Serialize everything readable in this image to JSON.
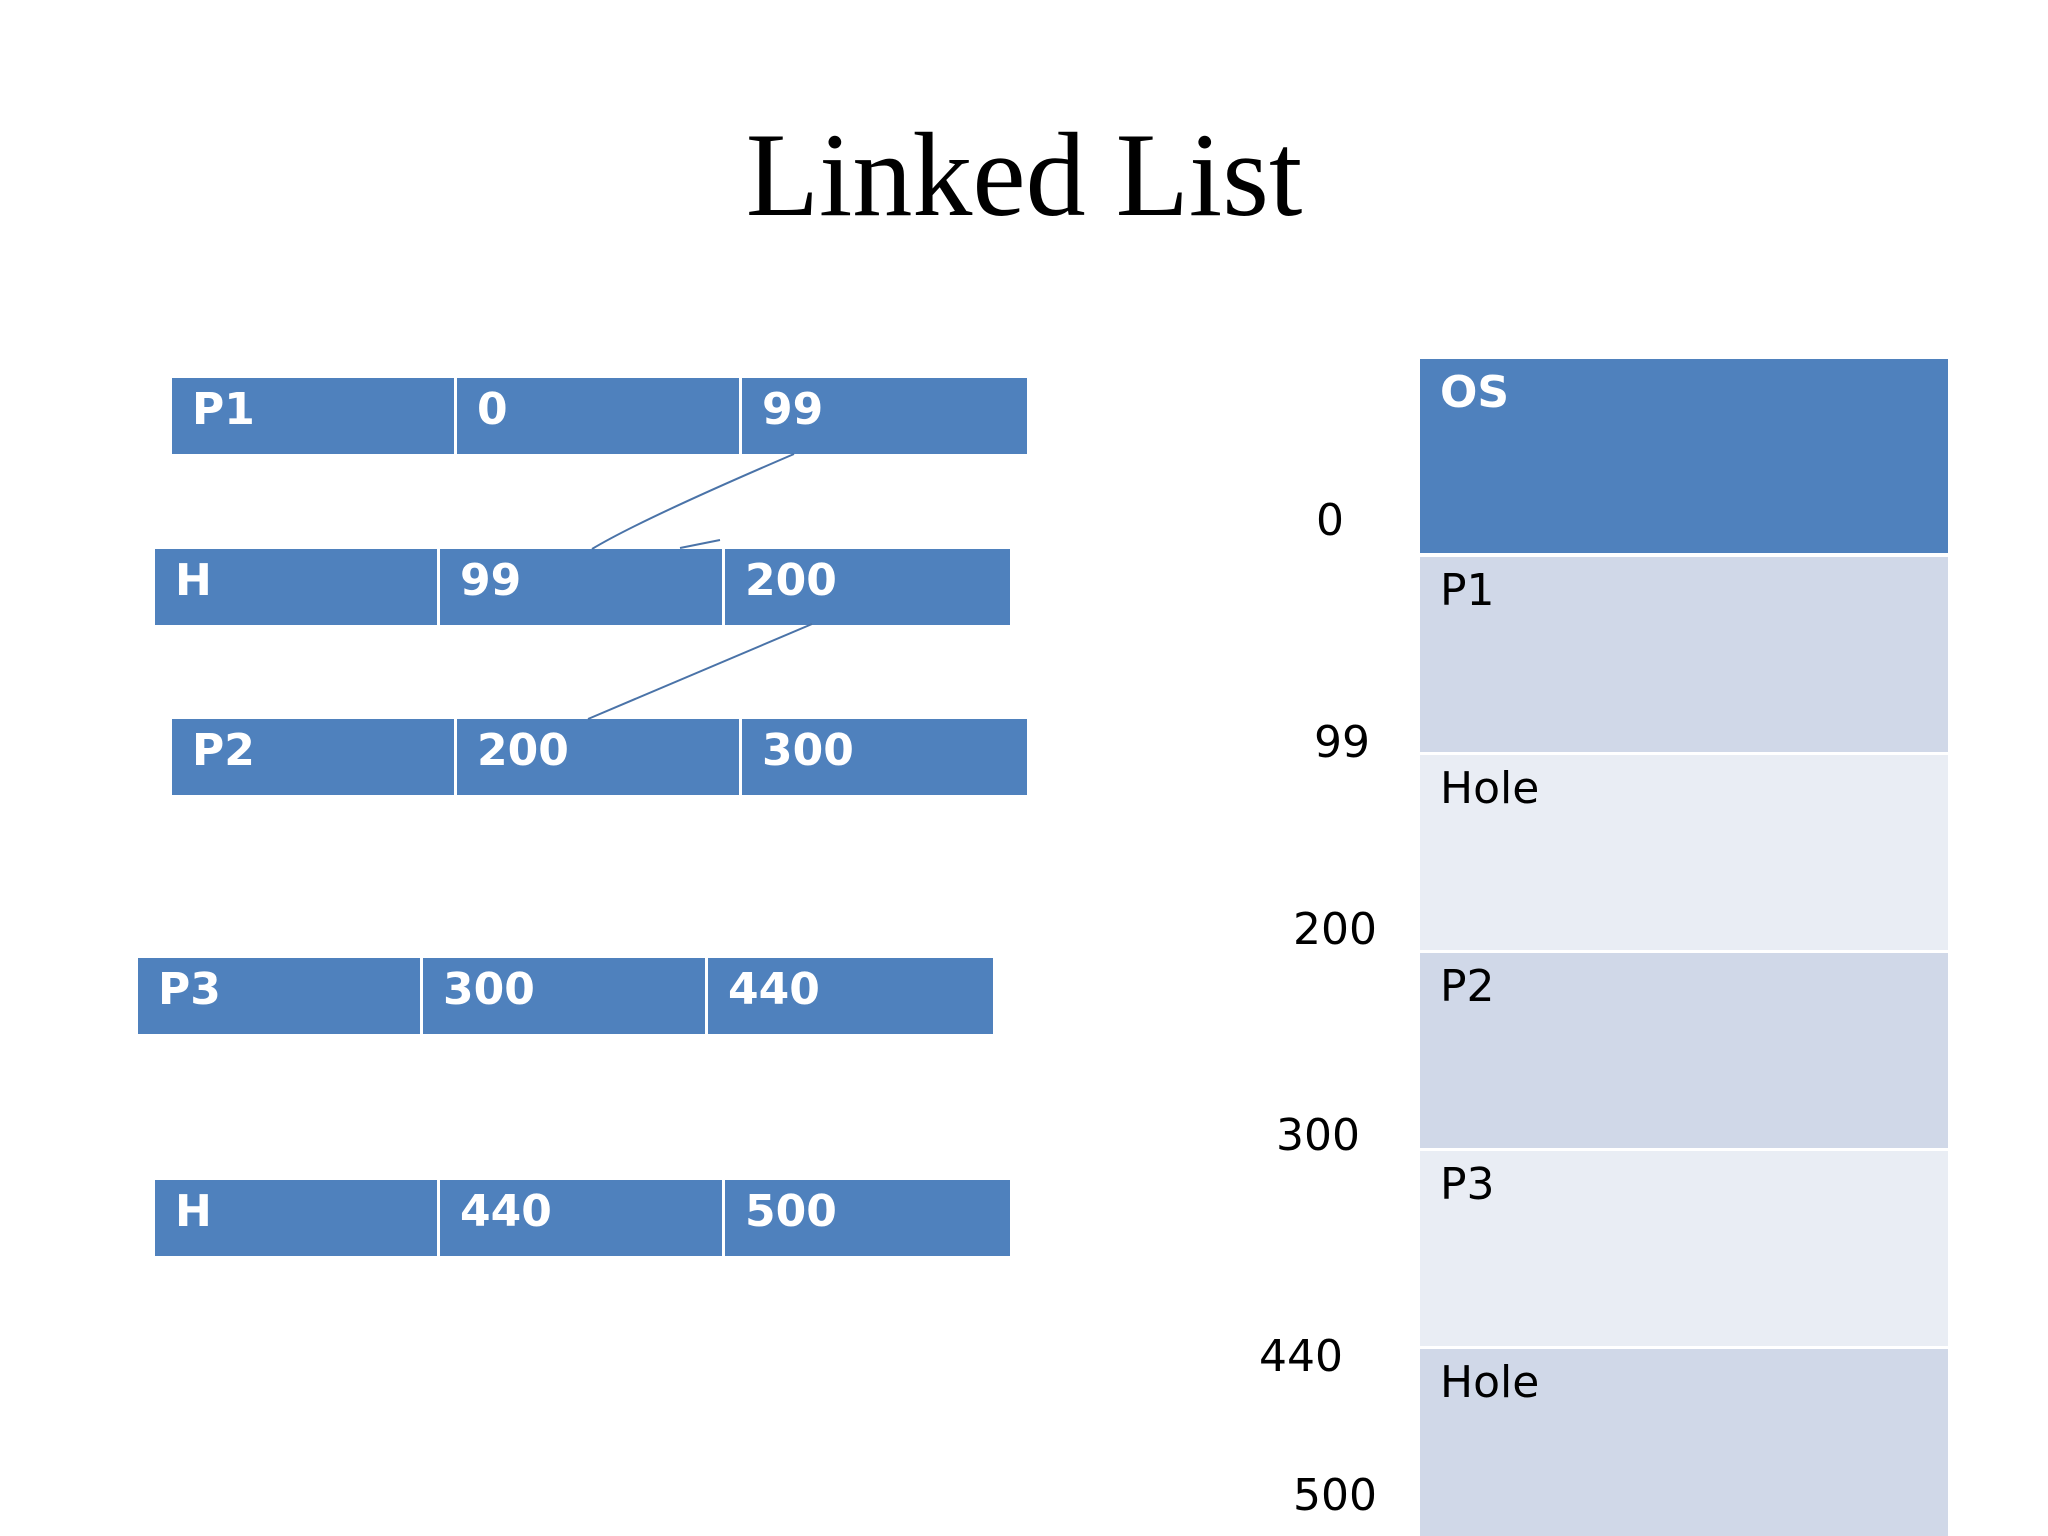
{
  "title": "Linked List",
  "colors": {
    "cell": "#4f81bd",
    "os": "#4f81bd",
    "process": "#d0d8e8",
    "hole": "#e9edf4",
    "connector": "#4a73a8"
  },
  "list_nodes": [
    {
      "label": "P1",
      "start": "0",
      "end": "99"
    },
    {
      "label": "H",
      "start": "99",
      "end": "200"
    },
    {
      "label": "P2",
      "start": "200",
      "end": "300"
    },
    {
      "label": "P3",
      "start": "300",
      "end": "440"
    },
    {
      "label": "H",
      "start": "440",
      "end": "500"
    }
  ],
  "memory_blocks": [
    {
      "label": "OS",
      "kind": "os"
    },
    {
      "label": "P1",
      "kind": "process"
    },
    {
      "label": "Hole",
      "kind": "hole"
    },
    {
      "label": "P2",
      "kind": "process"
    },
    {
      "label": "P3",
      "kind": "hole"
    },
    {
      "label": "Hole",
      "kind": "process"
    }
  ],
  "addresses": [
    "0",
    "99",
    "200",
    "300",
    "440",
    "500"
  ]
}
